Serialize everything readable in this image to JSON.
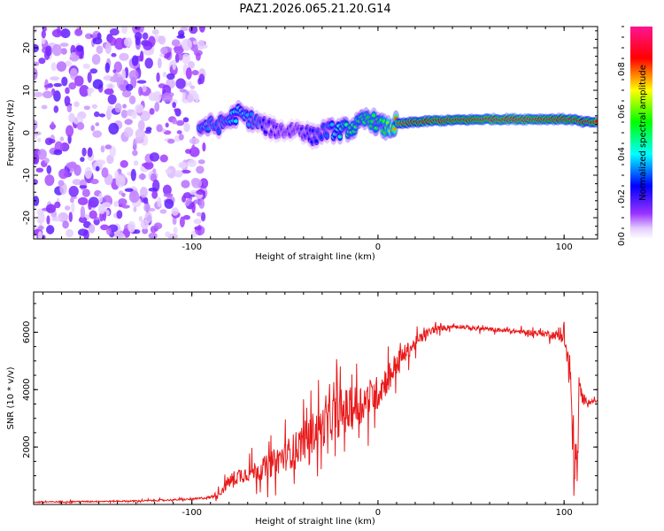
{
  "title": "PAZ1.2026.065.21.20.G14",
  "chart_data": [
    {
      "type": "heatmap",
      "name": "spectrogram",
      "xlabel": "Height of straight line (km)",
      "ylabel": "Frequency (Hz)",
      "xlim": [
        -185,
        118
      ],
      "ylim": [
        -25,
        25
      ],
      "x_ticks": [
        -100,
        0,
        100
      ],
      "y_ticks": [
        -20,
        -10,
        0,
        10,
        20
      ],
      "colorbar": {
        "label": "Normalized spectral amplitude",
        "range": [
          0.0,
          1.0
        ],
        "ticks": [
          0.0,
          0.2,
          0.4,
          0.6,
          0.8
        ],
        "tick_labels": [
          "0.0",
          "0.2",
          "0.4",
          "0.6",
          "0.8"
        ],
        "colormap": "rainbow (white/violet low → red/pink high)"
      },
      "ridge": {
        "x": [
          -95,
          -85,
          -75,
          -65,
          -58,
          -50,
          -42,
          -35,
          -28,
          -20,
          -15,
          -10,
          -5,
          0,
          5,
          10,
          20,
          30,
          45,
          60,
          80,
          100,
          106,
          110,
          118
        ],
        "frequency": [
          1.5,
          1.8,
          4.5,
          2.5,
          1.0,
          0.5,
          1.0,
          -1.0,
          0.5,
          0.5,
          1.0,
          2.0,
          3.5,
          2.0,
          1.0,
          2.0,
          2.5,
          2.8,
          3.0,
          3.2,
          3.2,
          3.2,
          3.0,
          2.5,
          2.5
        ],
        "amplitude": [
          0.35,
          0.3,
          0.4,
          0.3,
          0.2,
          0.2,
          0.2,
          0.25,
          0.3,
          0.45,
          0.5,
          0.5,
          0.55,
          0.5,
          0.6,
          0.8,
          0.85,
          0.9,
          0.9,
          0.95,
          0.95,
          0.9,
          0.9,
          0.85,
          0.9
        ]
      },
      "noise_region_x": [
        -185,
        -93
      ]
    },
    {
      "type": "line",
      "name": "snr",
      "xlabel": "Height of straight line (km)",
      "ylabel": "SNR (10 * v/v)",
      "xlim": [
        -185,
        118
      ],
      "ylim": [
        0,
        7400
      ],
      "x_ticks": [
        -100,
        0,
        100
      ],
      "y_ticks": [
        2000,
        4000,
        6000
      ],
      "series": [
        {
          "name": "SNR",
          "color": "#e8191a",
          "x": [
            -185,
            -160,
            -130,
            -100,
            -90,
            -85,
            -80,
            -75,
            -70,
            -65,
            -60,
            -55,
            -50,
            -45,
            -40,
            -35,
            -30,
            -25,
            -20,
            -15,
            -10,
            -5,
            0,
            5,
            10,
            15,
            20,
            25,
            30,
            35,
            40,
            45,
            50,
            60,
            70,
            80,
            90,
            95,
            100,
            103,
            105,
            107,
            108,
            110,
            112,
            115,
            118
          ],
          "y": [
            80,
            100,
            120,
            180,
            250,
            400,
            800,
            1000,
            1100,
            1200,
            1300,
            1500,
            1700,
            1900,
            2200,
            2500,
            2700,
            3000,
            3200,
            3300,
            3500,
            3700,
            3900,
            4400,
            4900,
            5300,
            5600,
            5900,
            6100,
            6150,
            6200,
            6200,
            6150,
            6100,
            6050,
            6000,
            5950,
            5900,
            5850,
            4500,
            2000,
            1000,
            4000,
            3700,
            3600,
            3600,
            3600
          ],
          "noise_amplitude": [
            40,
            40,
            40,
            50,
            80,
            200,
            400,
            500,
            500,
            600,
            700,
            800,
            900,
            1000,
            1100,
            1200,
            1200,
            1300,
            1400,
            1300,
            1200,
            1100,
            1000,
            900,
            700,
            500,
            400,
            300,
            200,
            150,
            120,
            120,
            120,
            120,
            120,
            150,
            200,
            250,
            400,
            1500,
            2000,
            1500,
            1000,
            400,
            150,
            100,
            100
          ]
        }
      ]
    }
  ]
}
